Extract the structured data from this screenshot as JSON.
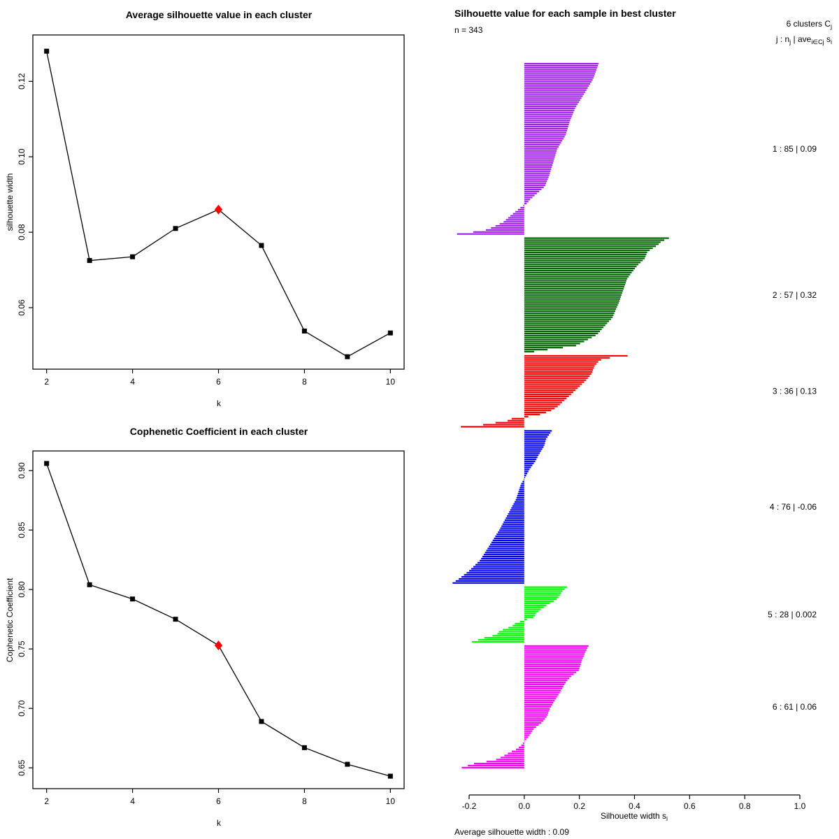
{
  "colors": {
    "highlight": "#FF0000",
    "series_line": "#000000",
    "cluster1": "#A020F0",
    "cluster2": "#006400",
    "cluster3": "#FF0000",
    "cluster4": "#0000FF",
    "cluster5": "#00FF00",
    "cluster6": "#FF00FF"
  },
  "chart_data": [
    {
      "id": "avg_silhouette",
      "type": "line",
      "title": "Average silhouette value in each cluster",
      "xlabel": "k",
      "ylabel": "silhouette width",
      "x": [
        2,
        3,
        4,
        5,
        6,
        7,
        8,
        9,
        10
      ],
      "y": [
        0.128,
        0.0725,
        0.0735,
        0.081,
        0.086,
        0.0765,
        0.0538,
        0.047,
        0.0533
      ],
      "xticks": [
        "2",
        "4",
        "6",
        "8",
        "10"
      ],
      "yticks": [
        "0.06",
        "0.08",
        "0.10",
        "0.12"
      ],
      "xlim": [
        1.68,
        10.32
      ],
      "ylim": [
        0.0437,
        0.1323
      ],
      "grid": false,
      "marker": "square",
      "highlight": {
        "index": 4,
        "x": 6,
        "y": 0.086,
        "color": "#FF0000",
        "marker": "diamond"
      }
    },
    {
      "id": "cophenetic",
      "type": "line",
      "title": "Cophenetic Coefficient in each cluster",
      "xlabel": "k",
      "ylabel": "Cophenetic Coefficient",
      "x": [
        2,
        3,
        4,
        5,
        6,
        7,
        8,
        9,
        10
      ],
      "y": [
        0.906,
        0.804,
        0.792,
        0.775,
        0.753,
        0.689,
        0.667,
        0.653,
        0.643
      ],
      "xticks": [
        "2",
        "4",
        "6",
        "8",
        "10"
      ],
      "yticks": [
        "0.65",
        "0.70",
        "0.75",
        "0.80",
        "0.85",
        "0.90"
      ],
      "xlim": [
        1.68,
        10.32
      ],
      "ylim": [
        0.6325,
        0.9165
      ],
      "grid": false,
      "marker": "square",
      "highlight": {
        "index": 4,
        "x": 6,
        "y": 0.753,
        "color": "#FF0000",
        "marker": "diamond"
      }
    },
    {
      "id": "silhouette_plot",
      "type": "bar",
      "orientation": "horizontal",
      "title": "Silhouette value for each sample in best cluster",
      "subtitle": "n = 343",
      "n": 343,
      "clusters_count": 6,
      "header": {
        "line1_main": "6  clusters  C",
        "line1_sub": "j",
        "line2_parts": [
          "j :  n",
          "j",
          " | ave",
          "i∈Cj",
          "  s",
          "i"
        ]
      },
      "xlabel_main": "Silhouette width s",
      "xlabel_sub": "i",
      "footer": "Average silhouette width :  0.09",
      "avg_silhouette_width": 0.09,
      "xticks": [
        "-0.2",
        "0.0",
        "0.2",
        "0.4",
        "0.6",
        "0.8",
        "1.0"
      ],
      "xlim": [
        -0.2,
        1.0
      ],
      "clusters": [
        {
          "j": 1,
          "n": 85,
          "avg": "0.09",
          "color": "#A020F0",
          "label": "1 :  85  |  0.09",
          "profile": [
            [
              0,
              0.27
            ],
            [
              0.09,
              0.25
            ],
            [
              0.17,
              0.22
            ],
            [
              0.26,
              0.185
            ],
            [
              0.34,
              0.165
            ],
            [
              0.42,
              0.15
            ],
            [
              0.5,
              0.12
            ],
            [
              0.58,
              0.105
            ],
            [
              0.66,
              0.09
            ],
            [
              0.72,
              0.075
            ],
            [
              0.77,
              0.04
            ],
            [
              0.8,
              0.02
            ],
            [
              0.82,
              0.01
            ],
            [
              0.84,
              -0.01
            ],
            [
              0.89,
              -0.048
            ],
            [
              0.93,
              -0.076
            ],
            [
              0.96,
              -0.114
            ],
            [
              0.98,
              -0.145
            ],
            [
              1,
              -0.244
            ]
          ]
        },
        {
          "j": 2,
          "n": 57,
          "avg": "0.32",
          "color": "#006400",
          "label": "2 :  57  |  0.32",
          "profile": [
            [
              0,
              0.525
            ],
            [
              0.03,
              0.497
            ],
            [
              0.06,
              0.485
            ],
            [
              0.12,
              0.447
            ],
            [
              0.18,
              0.437
            ],
            [
              0.24,
              0.411
            ],
            [
              0.3,
              0.391
            ],
            [
              0.36,
              0.373
            ],
            [
              0.45,
              0.36
            ],
            [
              0.57,
              0.343
            ],
            [
              0.7,
              0.32
            ],
            [
              0.76,
              0.297
            ],
            [
              0.85,
              0.264
            ],
            [
              0.91,
              0.218
            ],
            [
              0.95,
              0.185
            ],
            [
              0.99,
              0.06
            ],
            [
              1,
              0.036
            ]
          ]
        },
        {
          "j": 3,
          "n": 36,
          "avg": "0.13",
          "color": "#FF0000",
          "label": "3 :  36  |  0.13",
          "profile": [
            [
              0,
              0.375
            ],
            [
              0.04,
              0.285
            ],
            [
              0.09,
              0.267
            ],
            [
              0.15,
              0.254
            ],
            [
              0.25,
              0.245
            ],
            [
              0.35,
              0.223
            ],
            [
              0.45,
              0.196
            ],
            [
              0.55,
              0.168
            ],
            [
              0.65,
              0.139
            ],
            [
              0.72,
              0.12
            ],
            [
              0.78,
              0.094
            ],
            [
              0.83,
              0.056
            ],
            [
              0.86,
              0.01
            ],
            [
              0.89,
              -0.055
            ],
            [
              0.92,
              -0.062
            ],
            [
              0.94,
              -0.1
            ],
            [
              0.97,
              -0.145
            ],
            [
              1,
              -0.23
            ]
          ]
        },
        {
          "j": 4,
          "n": 76,
          "avg": "-0.06",
          "color": "#0000FF",
          "label": "4 :  76  |  -0.06",
          "profile": [
            [
              0,
              0.1
            ],
            [
              0.05,
              0.08
            ],
            [
              0.1,
              0.072
            ],
            [
              0.15,
              0.055
            ],
            [
              0.2,
              0.04
            ],
            [
              0.25,
              0.02
            ],
            [
              0.3,
              0.005
            ],
            [
              0.35,
              -0.012
            ],
            [
              0.45,
              -0.03
            ],
            [
              0.55,
              -0.06
            ],
            [
              0.65,
              -0.09
            ],
            [
              0.75,
              -0.125
            ],
            [
              0.85,
              -0.16
            ],
            [
              0.92,
              -0.2
            ],
            [
              0.97,
              -0.235
            ],
            [
              1,
              -0.26
            ]
          ]
        },
        {
          "j": 5,
          "n": 28,
          "avg": "0.002",
          "color": "#00FF00",
          "label": "5 :  28  |  0.002",
          "profile": [
            [
              0,
              0.155
            ],
            [
              0.08,
              0.137
            ],
            [
              0.16,
              0.128
            ],
            [
              0.24,
              0.114
            ],
            [
              0.32,
              0.084
            ],
            [
              0.4,
              0.062
            ],
            [
              0.48,
              0.043
            ],
            [
              0.55,
              0.036
            ],
            [
              0.6,
              0.005
            ],
            [
              0.65,
              -0.03
            ],
            [
              0.72,
              -0.046
            ],
            [
              0.8,
              -0.09
            ],
            [
              0.87,
              -0.1
            ],
            [
              0.93,
              -0.148
            ],
            [
              1,
              -0.19
            ]
          ]
        },
        {
          "j": 6,
          "n": 61,
          "avg": "0.06",
          "color": "#FF00FF",
          "label": "6 :  61  |  0.06",
          "profile": [
            [
              0,
              0.233
            ],
            [
              0.05,
              0.222
            ],
            [
              0.12,
              0.209
            ],
            [
              0.2,
              0.198
            ],
            [
              0.25,
              0.17
            ],
            [
              0.3,
              0.15
            ],
            [
              0.38,
              0.13
            ],
            [
              0.45,
              0.11
            ],
            [
              0.52,
              0.092
            ],
            [
              0.58,
              0.082
            ],
            [
              0.63,
              0.064
            ],
            [
              0.68,
              0.035
            ],
            [
              0.73,
              0.02
            ],
            [
              0.78,
              0.003
            ],
            [
              0.82,
              -0.012
            ],
            [
              0.85,
              -0.03
            ],
            [
              0.88,
              -0.057
            ],
            [
              0.91,
              -0.08
            ],
            [
              0.94,
              -0.108
            ],
            [
              0.965,
              -0.18
            ],
            [
              1,
              -0.227
            ]
          ]
        }
      ]
    }
  ]
}
